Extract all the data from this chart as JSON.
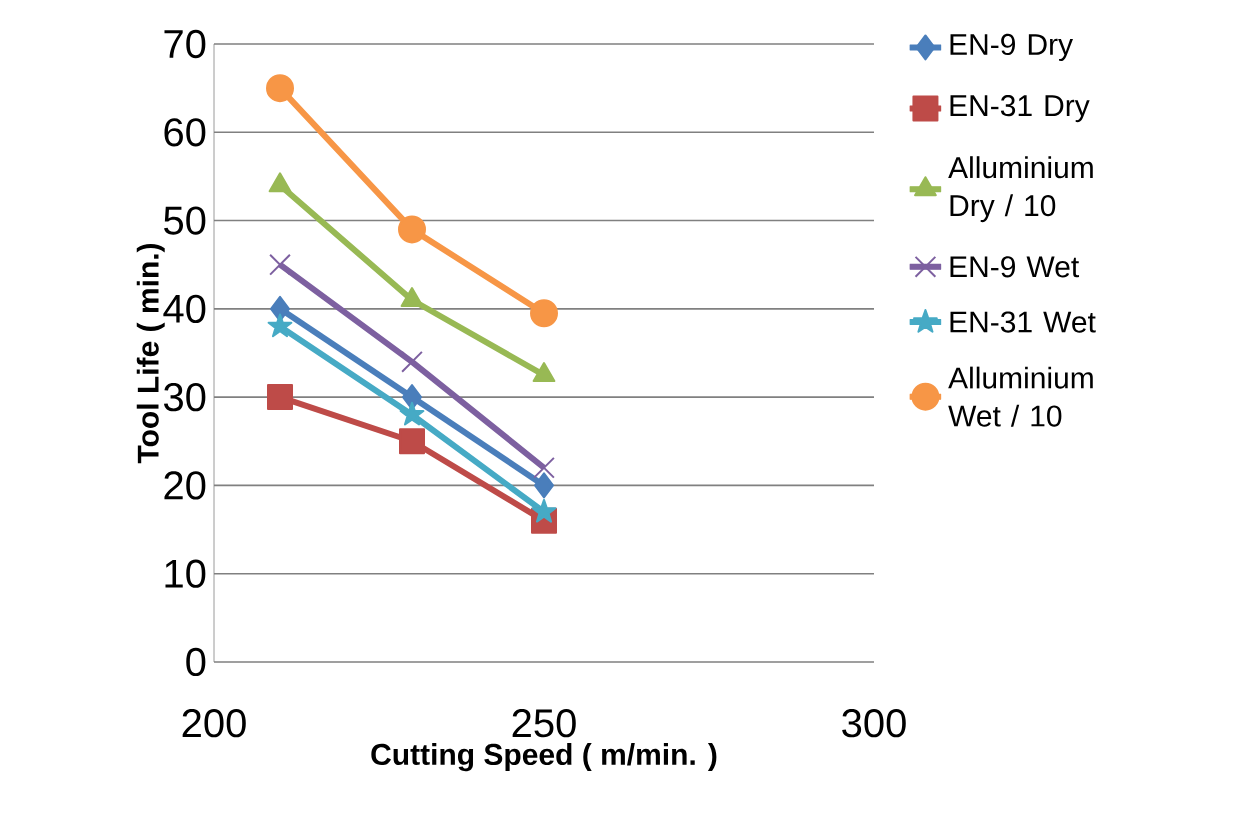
{
  "chart_data": {
    "type": "line",
    "xlabel": "Cutting Speed ( m/min. )",
    "ylabel": "Tool Life ( min.)",
    "x": [
      210,
      230,
      250
    ],
    "xlim": [
      200,
      300
    ],
    "xticks": [
      200,
      250,
      300
    ],
    "ylim": [
      0,
      70
    ],
    "yticks": [
      0,
      10,
      20,
      30,
      40,
      50,
      60,
      70
    ],
    "grid": "y",
    "legend": "right",
    "line_style": "solid",
    "series": [
      {
        "name": "EN-9 Dry",
        "color": "#4a7ebb",
        "marker": "diamond",
        "values": [
          40,
          30,
          20
        ]
      },
      {
        "name": "EN-31 Dry",
        "color": "#be4b48",
        "marker": "square",
        "values": [
          30,
          25,
          16
        ]
      },
      {
        "name": "Alluminium Dry / 10",
        "color": "#98b954",
        "marker": "triangle",
        "values": [
          54,
          41,
          32.5
        ]
      },
      {
        "name": "EN-9 Wet",
        "color": "#7d60a0",
        "marker": "cross",
        "values": [
          45,
          34,
          22
        ]
      },
      {
        "name": "EN-31 Wet",
        "color": "#46aac5",
        "marker": "star",
        "values": [
          38,
          28,
          17
        ]
      },
      {
        "name": "Alluminium Wet / 10",
        "color": "#f79646",
        "marker": "circle",
        "values": [
          65,
          49,
          39.5
        ]
      }
    ]
  }
}
